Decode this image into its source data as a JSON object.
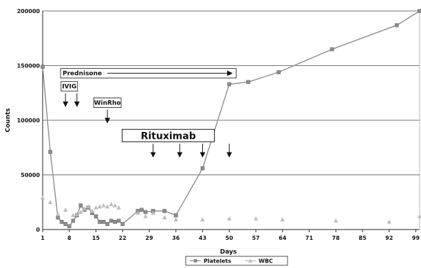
{
  "chart_data": {
    "type": "line",
    "title": "",
    "xlabel": "Days",
    "ylabel": "Counts",
    "xlim": [
      1,
      100
    ],
    "ylim": [
      0,
      200000
    ],
    "x_ticks": [
      "1",
      "8",
      "15",
      "22",
      "29",
      "36",
      "43",
      "50",
      "57",
      "64",
      "71",
      "78",
      "85",
      "92",
      "99"
    ],
    "y_ticks": [
      "0",
      "50000",
      "100000",
      "150000",
      "200000"
    ],
    "legend": {
      "position": "bottom-center",
      "entries": [
        "Platelets",
        "WBC"
      ]
    },
    "series": [
      {
        "name": "Platelets",
        "color": "#8c8c8c",
        "marker": "square",
        "points": [
          [
            1,
            149000
          ],
          [
            3,
            71000
          ],
          [
            5,
            11000
          ],
          [
            6,
            7000
          ],
          [
            7,
            5000
          ],
          [
            8,
            3000
          ],
          [
            9,
            8000
          ],
          [
            10,
            13000
          ],
          [
            11,
            22000
          ],
          [
            12,
            18000
          ],
          [
            13,
            20000
          ],
          [
            14,
            15000
          ],
          [
            15,
            12000
          ],
          [
            16,
            7000
          ],
          [
            17,
            7000
          ],
          [
            18,
            5000
          ],
          [
            19,
            8000
          ],
          [
            20,
            7000
          ],
          [
            21,
            8000
          ],
          [
            22,
            5000
          ],
          [
            26,
            17000
          ],
          [
            27,
            18000
          ],
          [
            28,
            16000
          ],
          [
            30,
            17000
          ],
          [
            33,
            17000
          ],
          [
            36,
            13000
          ],
          [
            43,
            56000
          ],
          [
            50,
            133000
          ],
          [
            55,
            135000
          ],
          [
            63,
            144000
          ],
          [
            77,
            165000
          ],
          [
            94,
            187000
          ],
          [
            100,
            200000
          ]
        ]
      },
      {
        "name": "WBC",
        "color": "#bdbdbd",
        "marker": "triangle",
        "points": [
          [
            1,
            29000
          ],
          [
            3,
            25000
          ],
          [
            5,
            14000
          ],
          [
            7,
            18000
          ],
          [
            9,
            13000
          ],
          [
            10,
            14000
          ],
          [
            11,
            16000
          ],
          [
            12,
            19000
          ],
          [
            13,
            21000
          ],
          [
            14,
            17000
          ],
          [
            15,
            20000
          ],
          [
            16,
            21000
          ],
          [
            17,
            22000
          ],
          [
            18,
            21000
          ],
          [
            19,
            23000
          ],
          [
            20,
            22000
          ],
          [
            21,
            20000
          ],
          [
            26,
            15000
          ],
          [
            28,
            12000
          ],
          [
            30,
            15000
          ],
          [
            33,
            11000
          ],
          [
            36,
            9000
          ],
          [
            43,
            9000
          ],
          [
            50,
            10000
          ],
          [
            57,
            10000
          ],
          [
            64,
            9000
          ],
          [
            78,
            8000
          ],
          [
            92,
            7000
          ],
          [
            100,
            12000
          ]
        ]
      }
    ],
    "annotations": [
      {
        "label": "Prednisone",
        "style": "box-arrow",
        "from_day": 1,
        "to_day": 50,
        "level": 143000
      },
      {
        "label": "IVIG",
        "style": "box",
        "day": 8,
        "level": 131000,
        "arrows_at_days": [
          7,
          10
        ]
      },
      {
        "label": "WinRho",
        "style": "box",
        "day": 18,
        "level": 116000,
        "arrows_at_days": [
          18
        ]
      },
      {
        "label": "Rituximab",
        "style": "big-box",
        "day": 34,
        "level": 86000,
        "arrows_at_days": [
          30,
          37,
          43,
          50
        ]
      }
    ]
  }
}
